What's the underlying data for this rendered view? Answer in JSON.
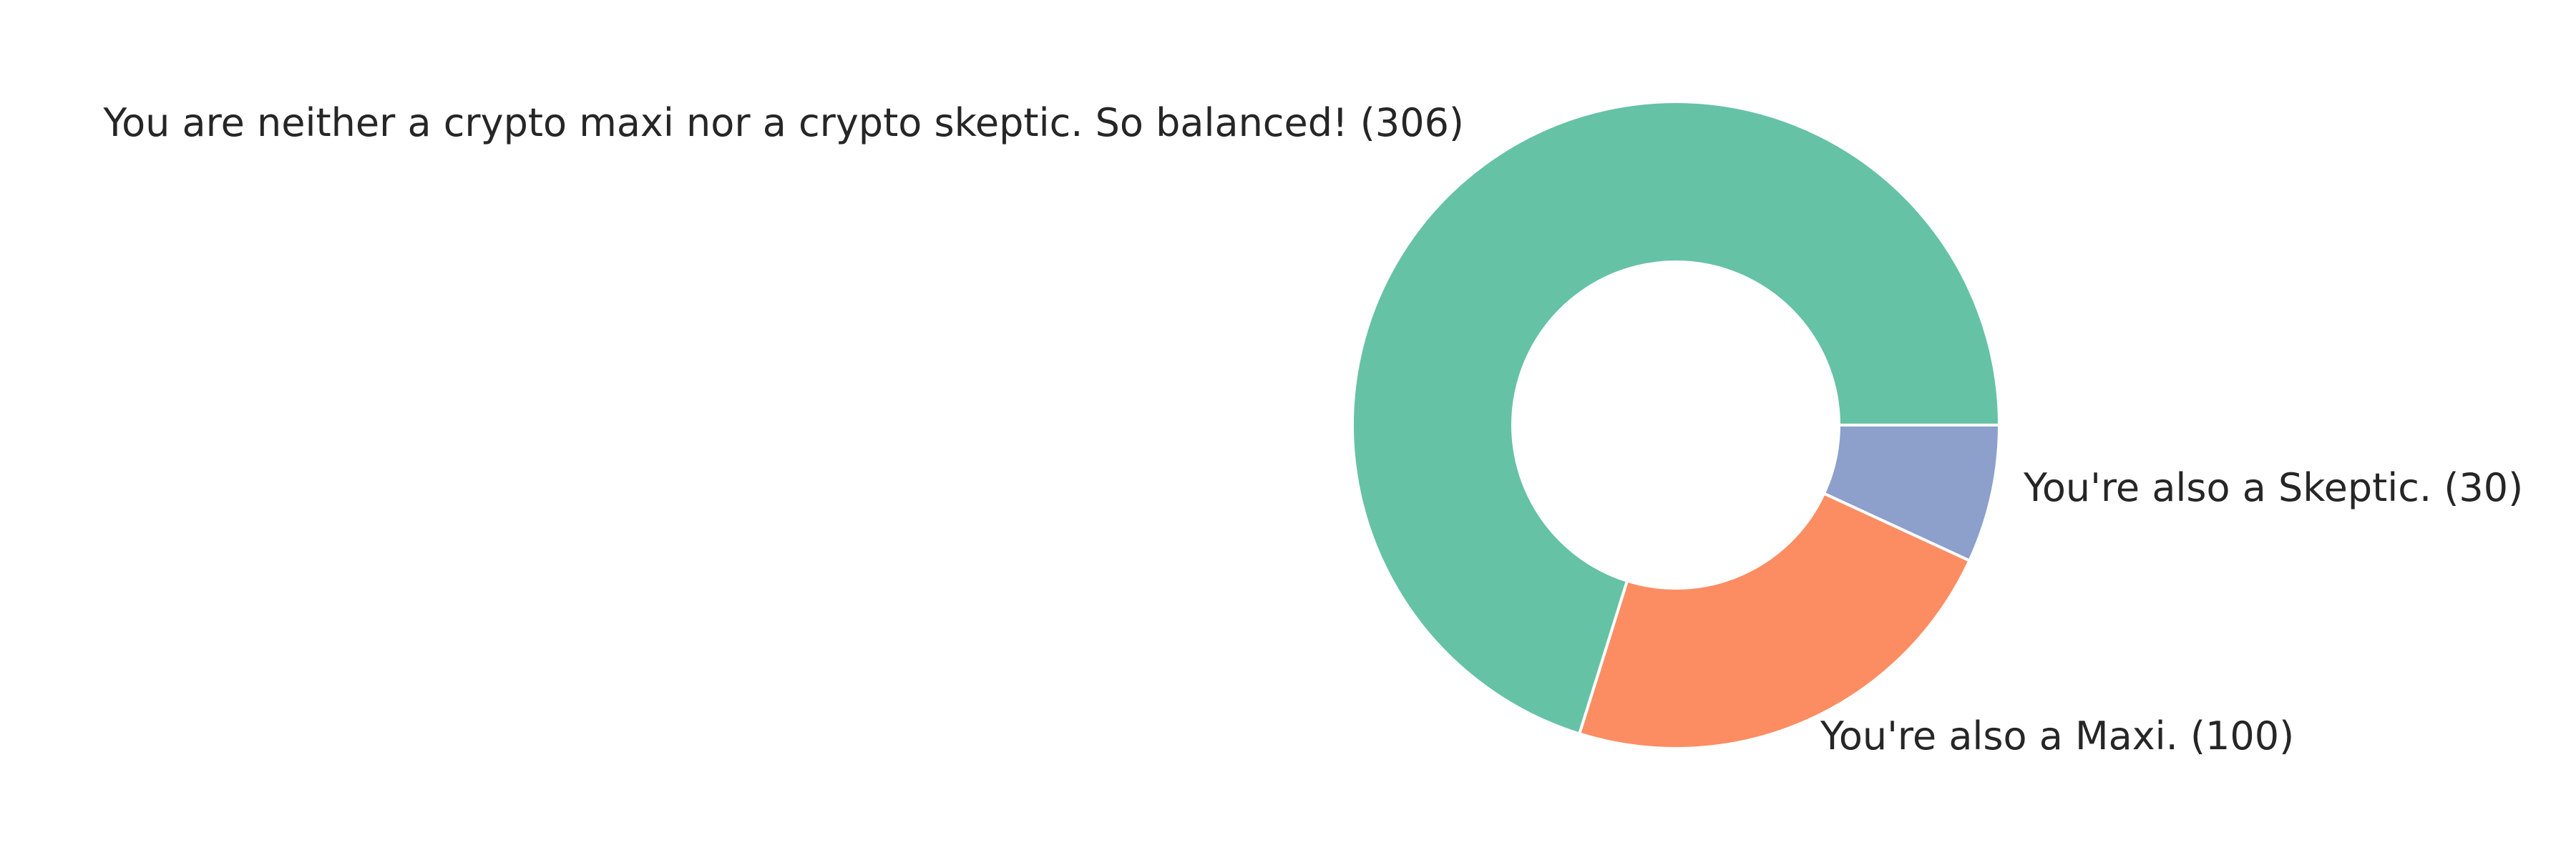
{
  "chart_data": {
    "type": "pie",
    "donut": true,
    "start": "3 o'clock",
    "direction": "counterclockwise",
    "labels_outside": true,
    "slices": [
      {
        "label": "You are neither a crypto maxi nor a crypto skeptic. So balanced! (306)",
        "value": 306,
        "color": "#66c2a5"
      },
      {
        "label": "You're also a Maxi. (100)",
        "value": 100,
        "color": "#fc8d62"
      },
      {
        "label": "You're also a Skeptic. (30)",
        "value": 30,
        "color": "#8da0cb"
      }
    ]
  }
}
